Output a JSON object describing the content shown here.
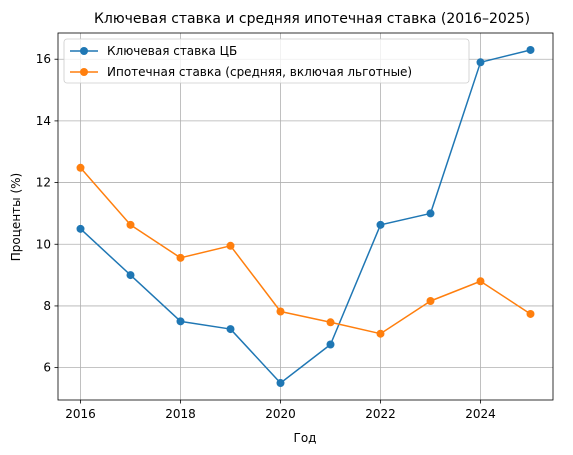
{
  "chart_data": {
    "type": "line",
    "title": "Ключевая ставка и средняя ипотечная ставка (2016–2025)",
    "xlabel": "Год",
    "ylabel": "Проценты (%)",
    "x": [
      2016,
      2017,
      2018,
      2019,
      2020,
      2021,
      2022,
      2023,
      2024,
      2025
    ],
    "xlim": [
      2015.55,
      2025.45
    ],
    "ylim": [
      4.95,
      16.85
    ],
    "xticks": [
      2016,
      2018,
      2020,
      2022,
      2024
    ],
    "yticks": [
      6,
      8,
      10,
      12,
      14,
      16
    ],
    "grid": true,
    "legend_position": "top-left",
    "series": [
      {
        "name": "Ключевая ставка ЦБ",
        "color": "#1f77b4",
        "values": [
          10.5,
          9.0,
          7.5,
          7.25,
          5.5,
          6.75,
          10.63,
          11.0,
          15.9,
          16.3
        ]
      },
      {
        "name": "Ипотечная ставка (средняя, включая льготные)",
        "color": "#ff7f0e",
        "values": [
          12.48,
          10.63,
          9.56,
          9.95,
          7.82,
          7.47,
          7.1,
          8.16,
          8.8,
          7.74
        ]
      }
    ]
  }
}
